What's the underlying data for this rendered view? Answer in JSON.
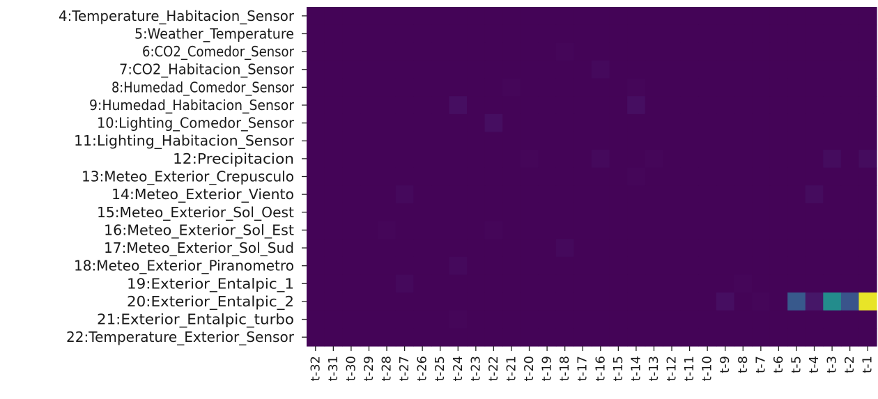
{
  "chart_data": {
    "type": "heatmap",
    "title": "",
    "xlabel": "",
    "ylabel": "",
    "colormap": "viridis",
    "vmin": 0,
    "vmax": 1,
    "x": [
      "t-32",
      "t-31",
      "t-30",
      "t-29",
      "t-28",
      "t-27",
      "t-26",
      "t-25",
      "t-24",
      "t-23",
      "t-22",
      "t-21",
      "t-20",
      "t-19",
      "t-18",
      "t-17",
      "t-16",
      "t-15",
      "t-14",
      "t-13",
      "t-12",
      "t-11",
      "t-10",
      "t-9",
      "t-8",
      "t-7",
      "t-6",
      "t-5",
      "t-4",
      "t-3",
      "t-2",
      "t-1"
    ],
    "y": [
      "4:Temperature_Habitacion_Sensor",
      "5:Weather_Temperature",
      "6:CO2_Comedor_Sensor",
      "7:CO2_Habitacion_Sensor",
      "8:Humedad_Comedor_Sensor",
      "9:Humedad_Habitacion_Sensor",
      "10:Lighting_Comedor_Sensor",
      "11:Lighting_Habitacion_Sensor",
      "12:Precipitacion",
      "13:Meteo_Exterior_Crepusculo",
      "14:Meteo_Exterior_Viento",
      "15:Meteo_Exterior_Sol_Oest",
      "16:Meteo_Exterior_Sol_Est",
      "17:Meteo_Exterior_Sol_Sud",
      "18:Meteo_Exterior_Piranometro",
      "19:Exterior_Entalpic_1",
      "20:Exterior_Entalpic_2",
      "21:Exterior_Entalpic_turbo",
      "22:Temperature_Exterior_Sensor"
    ],
    "values": [
      [
        0.01,
        0.01,
        0.01,
        0.01,
        0.01,
        0.01,
        0.01,
        0.01,
        0.01,
        0.01,
        0.01,
        0.01,
        0.01,
        0.01,
        0.01,
        0.01,
        0.01,
        0.01,
        0.01,
        0.01,
        0.01,
        0.01,
        0.01,
        0.01,
        0.01,
        0.01,
        0.01,
        0.01,
        0.01,
        0.01,
        0.01,
        0.01
      ],
      [
        0.01,
        0.01,
        0.01,
        0.01,
        0.01,
        0.01,
        0.01,
        0.01,
        0.01,
        0.01,
        0.01,
        0.01,
        0.01,
        0.01,
        0.01,
        0.01,
        0.01,
        0.01,
        0.01,
        0.01,
        0.01,
        0.01,
        0.01,
        0.01,
        0.01,
        0.01,
        0.01,
        0.01,
        0.01,
        0.01,
        0.01,
        0.01
      ],
      [
        0.01,
        0.01,
        0.01,
        0.01,
        0.01,
        0.01,
        0.01,
        0.01,
        0.01,
        0.01,
        0.01,
        0.01,
        0.01,
        0.01,
        0.02,
        0.01,
        0.01,
        0.01,
        0.01,
        0.01,
        0.01,
        0.01,
        0.01,
        0.01,
        0.01,
        0.01,
        0.01,
        0.01,
        0.01,
        0.01,
        0.01,
        0.01
      ],
      [
        0.01,
        0.01,
        0.01,
        0.01,
        0.01,
        0.01,
        0.01,
        0.01,
        0.01,
        0.01,
        0.01,
        0.01,
        0.01,
        0.01,
        0.01,
        0.01,
        0.03,
        0.01,
        0.01,
        0.01,
        0.01,
        0.01,
        0.01,
        0.01,
        0.01,
        0.01,
        0.01,
        0.01,
        0.01,
        0.01,
        0.01,
        0.01
      ],
      [
        0.01,
        0.01,
        0.01,
        0.01,
        0.01,
        0.01,
        0.01,
        0.01,
        0.01,
        0.01,
        0.01,
        0.02,
        0.01,
        0.01,
        0.01,
        0.01,
        0.01,
        0.01,
        0.02,
        0.01,
        0.01,
        0.01,
        0.01,
        0.01,
        0.01,
        0.01,
        0.01,
        0.01,
        0.01,
        0.01,
        0.01,
        0.01
      ],
      [
        0.01,
        0.01,
        0.01,
        0.01,
        0.01,
        0.01,
        0.01,
        0.01,
        0.05,
        0.01,
        0.01,
        0.01,
        0.01,
        0.01,
        0.01,
        0.01,
        0.01,
        0.01,
        0.05,
        0.01,
        0.01,
        0.01,
        0.01,
        0.01,
        0.01,
        0.01,
        0.01,
        0.01,
        0.01,
        0.01,
        0.01,
        0.01
      ],
      [
        0.01,
        0.01,
        0.01,
        0.01,
        0.01,
        0.01,
        0.01,
        0.01,
        0.01,
        0.01,
        0.05,
        0.01,
        0.01,
        0.01,
        0.01,
        0.01,
        0.01,
        0.01,
        0.01,
        0.01,
        0.01,
        0.01,
        0.01,
        0.01,
        0.01,
        0.01,
        0.01,
        0.01,
        0.01,
        0.01,
        0.01,
        0.01
      ],
      [
        0.01,
        0.01,
        0.01,
        0.01,
        0.01,
        0.01,
        0.01,
        0.01,
        0.01,
        0.01,
        0.01,
        0.01,
        0.01,
        0.01,
        0.01,
        0.01,
        0.01,
        0.01,
        0.01,
        0.01,
        0.01,
        0.01,
        0.01,
        0.01,
        0.01,
        0.01,
        0.01,
        0.01,
        0.01,
        0.01,
        0.01,
        0.01
      ],
      [
        0.01,
        0.01,
        0.01,
        0.01,
        0.01,
        0.01,
        0.01,
        0.01,
        0.01,
        0.01,
        0.01,
        0.01,
        0.02,
        0.01,
        0.01,
        0.01,
        0.03,
        0.01,
        0.01,
        0.02,
        0.01,
        0.01,
        0.01,
        0.01,
        0.01,
        0.01,
        0.01,
        0.01,
        0.01,
        0.04,
        0.01,
        0.04
      ],
      [
        0.01,
        0.01,
        0.01,
        0.01,
        0.01,
        0.01,
        0.01,
        0.01,
        0.01,
        0.01,
        0.01,
        0.01,
        0.01,
        0.01,
        0.01,
        0.01,
        0.01,
        0.01,
        0.02,
        0.01,
        0.01,
        0.01,
        0.01,
        0.01,
        0.01,
        0.01,
        0.01,
        0.01,
        0.01,
        0.01,
        0.01,
        0.01
      ],
      [
        0.01,
        0.01,
        0.01,
        0.01,
        0.01,
        0.03,
        0.01,
        0.01,
        0.01,
        0.01,
        0.01,
        0.01,
        0.01,
        0.01,
        0.01,
        0.01,
        0.01,
        0.01,
        0.01,
        0.01,
        0.01,
        0.01,
        0.01,
        0.01,
        0.01,
        0.01,
        0.01,
        0.01,
        0.04,
        0.01,
        0.01,
        0.01
      ],
      [
        0.01,
        0.01,
        0.01,
        0.01,
        0.01,
        0.01,
        0.01,
        0.01,
        0.01,
        0.01,
        0.01,
        0.01,
        0.01,
        0.01,
        0.01,
        0.01,
        0.01,
        0.01,
        0.01,
        0.01,
        0.01,
        0.01,
        0.01,
        0.01,
        0.01,
        0.01,
        0.01,
        0.01,
        0.01,
        0.01,
        0.01,
        0.01
      ],
      [
        0.01,
        0.01,
        0.01,
        0.01,
        0.02,
        0.01,
        0.01,
        0.01,
        0.01,
        0.01,
        0.02,
        0.01,
        0.01,
        0.01,
        0.01,
        0.01,
        0.01,
        0.01,
        0.01,
        0.01,
        0.01,
        0.01,
        0.01,
        0.01,
        0.01,
        0.01,
        0.01,
        0.01,
        0.01,
        0.01,
        0.01,
        0.01
      ],
      [
        0.01,
        0.01,
        0.01,
        0.01,
        0.01,
        0.01,
        0.01,
        0.01,
        0.01,
        0.01,
        0.01,
        0.01,
        0.01,
        0.01,
        0.03,
        0.01,
        0.01,
        0.01,
        0.01,
        0.01,
        0.01,
        0.01,
        0.01,
        0.01,
        0.01,
        0.01,
        0.01,
        0.01,
        0.01,
        0.01,
        0.01,
        0.01
      ],
      [
        0.01,
        0.01,
        0.01,
        0.01,
        0.01,
        0.01,
        0.01,
        0.01,
        0.03,
        0.01,
        0.01,
        0.01,
        0.01,
        0.01,
        0.01,
        0.01,
        0.01,
        0.01,
        0.01,
        0.01,
        0.01,
        0.01,
        0.01,
        0.01,
        0.01,
        0.01,
        0.01,
        0.01,
        0.01,
        0.01,
        0.01,
        0.01
      ],
      [
        0.01,
        0.01,
        0.01,
        0.01,
        0.01,
        0.03,
        0.01,
        0.01,
        0.01,
        0.01,
        0.01,
        0.01,
        0.01,
        0.01,
        0.01,
        0.01,
        0.01,
        0.01,
        0.01,
        0.01,
        0.01,
        0.01,
        0.01,
        0.01,
        0.02,
        0.01,
        0.01,
        0.01,
        0.01,
        0.01,
        0.01,
        0.01
      ],
      [
        0.01,
        0.01,
        0.01,
        0.01,
        0.01,
        0.01,
        0.01,
        0.01,
        0.01,
        0.01,
        0.01,
        0.01,
        0.01,
        0.01,
        0.01,
        0.01,
        0.01,
        0.01,
        0.01,
        0.01,
        0.01,
        0.01,
        0.01,
        0.05,
        0.01,
        0.02,
        0.01,
        0.28,
        0.08,
        0.48,
        0.26,
        0.97
      ],
      [
        0.01,
        0.01,
        0.01,
        0.01,
        0.01,
        0.01,
        0.01,
        0.01,
        0.02,
        0.01,
        0.01,
        0.01,
        0.01,
        0.01,
        0.01,
        0.01,
        0.01,
        0.01,
        0.01,
        0.01,
        0.01,
        0.01,
        0.01,
        0.01,
        0.01,
        0.01,
        0.01,
        0.01,
        0.01,
        0.01,
        0.01,
        0.01
      ],
      [
        0.01,
        0.01,
        0.01,
        0.01,
        0.01,
        0.01,
        0.01,
        0.01,
        0.01,
        0.01,
        0.01,
        0.01,
        0.01,
        0.01,
        0.01,
        0.01,
        0.01,
        0.01,
        0.01,
        0.01,
        0.01,
        0.01,
        0.01,
        0.01,
        0.01,
        0.01,
        0.01,
        0.01,
        0.01,
        0.01,
        0.01,
        0.01
      ]
    ]
  }
}
